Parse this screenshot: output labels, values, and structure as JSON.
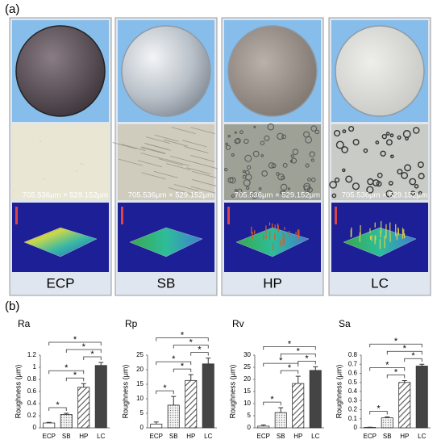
{
  "panel_a": {
    "label": "(a)",
    "columns": [
      {
        "label": "ECP",
        "scale": "705.536μm × 529.152μm"
      },
      {
        "label": "SB",
        "scale": "705.536μm × 529.152μm"
      },
      {
        "label": "HP",
        "scale": "705.536μm × 529.152μm"
      },
      {
        "label": "LC",
        "scale": "705.536μm × 529.152μm"
      }
    ]
  },
  "panel_b_label": "(b)",
  "chart_data": [
    {
      "type": "bar",
      "title": "Ra",
      "y_label": "Roughness (μm)",
      "categories": [
        "ECP",
        "SB",
        "HP",
        "LC"
      ],
      "values": [
        0.08,
        0.22,
        0.67,
        1.03
      ],
      "errors": [
        0.01,
        0.02,
        0.06,
        0.05
      ],
      "ylim": [
        0,
        1.2
      ],
      "yticks": [
        0,
        0.2,
        0.4,
        0.6,
        0.8,
        1,
        1.2
      ],
      "annotations": [
        "*",
        "*",
        "*",
        "*",
        "*",
        "*"
      ]
    },
    {
      "type": "bar",
      "title": "Rp",
      "y_label": "Roughness (μm)",
      "categories": [
        "ECP",
        "SB",
        "HP",
        "LC"
      ],
      "values": [
        1.3,
        7.8,
        16.3,
        22
      ],
      "errors": [
        0.7,
        3,
        2,
        2
      ],
      "ylim": [
        0,
        25
      ],
      "yticks": [
        0,
        5,
        10,
        15,
        20,
        25
      ],
      "annotations": [
        "*",
        "*",
        "*",
        "*",
        "*",
        "*"
      ]
    },
    {
      "type": "bar",
      "title": "Rv",
      "y_label": "Roughness (μm)",
      "categories": [
        "ECP",
        "SB",
        "HP",
        "LC"
      ],
      "values": [
        0.7,
        6.3,
        18.3,
        23.7
      ],
      "errors": [
        0.5,
        2,
        3,
        1.5
      ],
      "ylim": [
        0,
        30
      ],
      "yticks": [
        0,
        5,
        10,
        15,
        20,
        25,
        30
      ],
      "annotations": [
        "*",
        "*",
        "*",
        "*",
        "*",
        "*"
      ]
    },
    {
      "type": "bar",
      "title": "Sa",
      "y_label": "Roughness (μm)",
      "categories": [
        "ECP",
        "SB",
        "HP",
        "LC"
      ],
      "values": [
        0.005,
        0.11,
        0.5,
        0.68
      ],
      "errors": [
        0.002,
        0.01,
        0.02,
        0.02
      ],
      "ylim": [
        0,
        0.8
      ],
      "yticks": [
        0,
        0.1,
        0.2,
        0.3,
        0.4,
        0.5,
        0.6,
        0.7,
        0.8
      ],
      "annotations": [
        "*",
        "*",
        "*",
        "*",
        "*",
        "*"
      ]
    }
  ]
}
